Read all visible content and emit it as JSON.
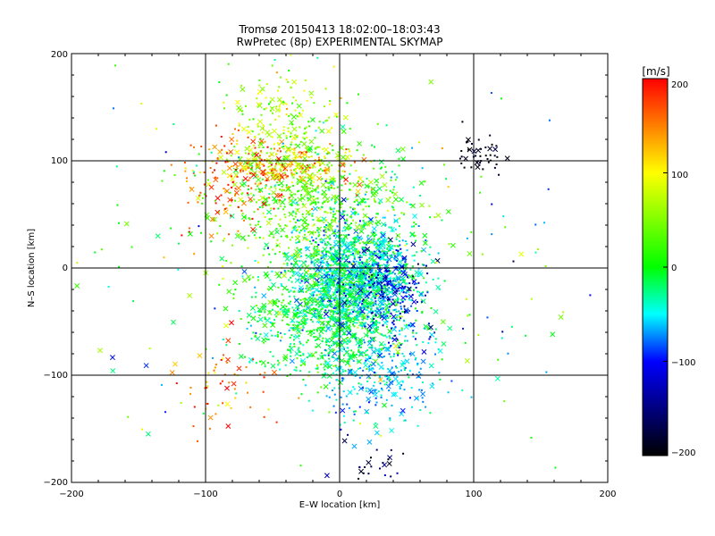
{
  "chart_data": {
    "type": "scatter",
    "title": "Tromsø 20150413 18:02:00–18:03:43",
    "subtitle": "RwPretec (8p) EXPERIMENTAL SKYMAP",
    "xlabel": "E–W location [km]",
    "ylabel": "N–S location [km]",
    "xlim": [
      -200,
      200
    ],
    "ylim": [
      -200,
      200
    ],
    "x_ticks": [
      "−200",
      "−100",
      "0",
      "100",
      "200"
    ],
    "y_ticks": [
      "−200",
      "−100",
      "0",
      "100",
      "200"
    ],
    "grid": true,
    "grid_lines_x": [
      -100,
      0,
      100
    ],
    "grid_lines_y": [
      -100,
      0,
      100
    ],
    "marker_types": [
      "dot",
      "x"
    ],
    "colorbar": {
      "label": "[m/s]",
      "range": [
        -200,
        200
      ],
      "ticks": [
        "200",
        "100",
        "0",
        "−100",
        "−200"
      ],
      "stops": [
        {
          "value": 200,
          "color": "#ff0000"
        },
        {
          "value": 100,
          "color": "#ffff00"
        },
        {
          "value": 0,
          "color": "#00ff00"
        },
        {
          "value": -50,
          "color": "#00ffff"
        },
        {
          "value": -100,
          "color": "#0000ff"
        },
        {
          "value": -200,
          "color": "#000000"
        }
      ]
    },
    "clusters": [
      {
        "center": [
          12,
          -8
        ],
        "spread": [
          22,
          28
        ],
        "velocity": -40,
        "velocity_spread": 30,
        "count": 1500
      },
      {
        "center": [
          -10,
          -50
        ],
        "spread": [
          30,
          25
        ],
        "velocity": -10,
        "velocity_spread": 25,
        "count": 700
      },
      {
        "center": [
          -20,
          60
        ],
        "spread": [
          35,
          30
        ],
        "velocity": 30,
        "velocity_spread": 30,
        "count": 650
      },
      {
        "center": [
          -45,
          95
        ],
        "spread": [
          25,
          12
        ],
        "velocity": 120,
        "velocity_spread": 40,
        "count": 260
      },
      {
        "center": [
          -45,
          140
        ],
        "spread": [
          20,
          22
        ],
        "velocity": 70,
        "velocity_spread": 30,
        "count": 160
      },
      {
        "center": [
          35,
          -20
        ],
        "spread": [
          15,
          20
        ],
        "velocity": -110,
        "velocity_spread": 30,
        "count": 220
      },
      {
        "center": [
          105,
          105
        ],
        "spread": [
          10,
          10
        ],
        "velocity": -190,
        "velocity_spread": 10,
        "count": 45
      },
      {
        "center": [
          30,
          -100
        ],
        "spread": [
          25,
          25
        ],
        "velocity": -60,
        "velocity_spread": 20,
        "count": 260
      },
      {
        "center": [
          -80,
          80
        ],
        "spread": [
          18,
          25
        ],
        "velocity": 170,
        "velocity_spread": 25,
        "count": 110
      },
      {
        "center": [
          -90,
          -110
        ],
        "spread": [
          18,
          20
        ],
        "velocity": 160,
        "velocity_spread": 40,
        "count": 60
      },
      {
        "center": [
          0,
          0
        ],
        "spread": [
          90,
          90
        ],
        "velocity": 0,
        "velocity_spread": 60,
        "count": 280
      },
      {
        "center": [
          25,
          -180
        ],
        "spread": [
          15,
          12
        ],
        "velocity": -170,
        "velocity_spread": 30,
        "count": 25
      }
    ]
  }
}
